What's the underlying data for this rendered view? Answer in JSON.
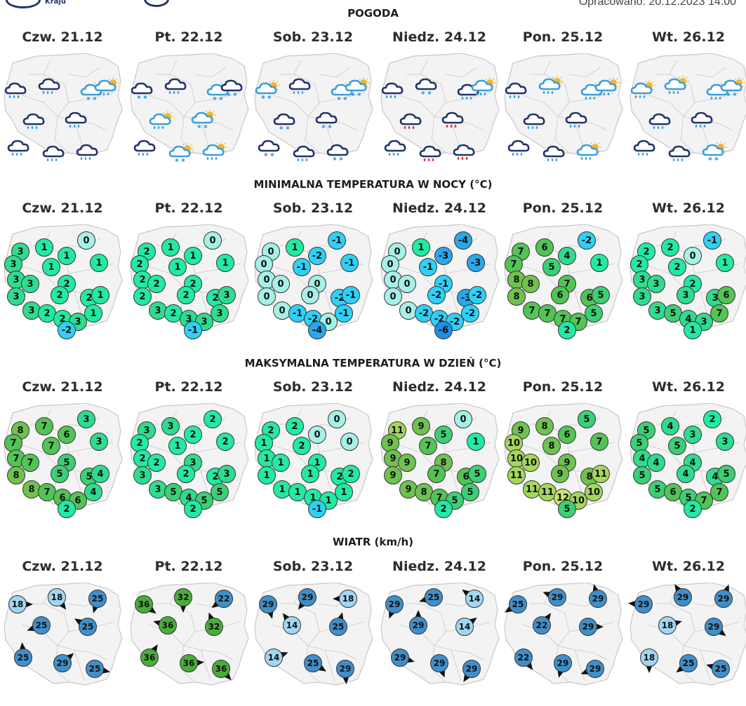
{
  "header": {
    "logo_left_text": "Kraju",
    "updated": "Opracowano: 20.12.2023 14:00"
  },
  "colors": {
    "cloud_dark": "#24326b",
    "cloud_light": "#3a9fdc",
    "sun": "#f5b72a",
    "rain_blue": "#3a9fdc",
    "rain_red": "#e0282e",
    "map_fill": "#f3f3f3",
    "map_stroke": "#c8c8c8"
  },
  "sections": {
    "weather": "POGODA",
    "tmin": "MINIMALNA TEMPERATURA W NOCY (°C)",
    "tmax": "MAKSYMALNA TEMPERATURA W DZIEŃ (°C)",
    "wind": "WIATR (km/h)"
  },
  "days": [
    "Czw. 21.12",
    "Pt. 22.12",
    "Sob. 23.12",
    "Niedz. 24.12",
    "Pon. 25.12",
    "Wt. 26.12"
  ],
  "weather_icons": [
    [
      "cloud-rain",
      "cloud-rain",
      "sun-cloud-snow",
      "cloud-rain",
      "cloud-rain",
      "cloud-rain",
      "cloud-rain",
      "cloud-rain",
      "sun-cloud-rain"
    ],
    [
      "cloud-snow",
      "cloud-rain",
      "sun-cloud-snow",
      "sun-cloud-rain",
      "sun-cloud-snow",
      "cloud-rain",
      "sun-cloud-snow",
      "sun-cloud-rain",
      "cloud-snow"
    ],
    [
      "sun-cloud-snow",
      "cloud-rain",
      "sun-cloud-snow",
      "cloud-snow",
      "cloud-snow",
      "cloud-snow",
      "cloud-rain",
      "cloud-snow",
      "sun-cloud-snow"
    ],
    [
      "cloud-rain",
      "cloud-snow",
      "cloud-rain",
      "cloud-rain-red",
      "cloud-rain-red",
      "cloud-rain",
      "cloud-rain-red",
      "cloud-rain-red",
      "sun-cloud-rain"
    ],
    [
      "cloud-rain",
      "sun-cloud-rain",
      "sun-cloud-rain",
      "cloud-rain",
      "cloud-rain",
      "cloud-rain",
      "cloud-rain",
      "sun-cloud-rain",
      "sun-cloud-rain"
    ],
    [
      "sun-cloud-rain",
      "sun-cloud-rain",
      "sun-cloud-rain",
      "cloud-rain",
      "cloud-rain",
      "cloud-rain",
      "cloud-rain",
      "sun-cloud-snow",
      "sun-cloud-snow"
    ]
  ],
  "tmin": [
    [
      "3",
      "1",
      "0",
      "3",
      "1",
      "1",
      "1",
      "3",
      "3",
      "2",
      "3",
      "2",
      "2",
      "3",
      "2",
      "2",
      "3",
      "1",
      "1",
      "-2"
    ],
    [
      "2",
      "1",
      "0",
      "2",
      "1",
      "1",
      "1",
      "2",
      "2",
      "2",
      "2",
      "2",
      "2",
      "3",
      "2",
      "3",
      "3",
      "3",
      "3",
      "-1"
    ],
    [
      "0",
      "1",
      "-1",
      "0",
      "-1",
      "-2",
      "-1",
      "0",
      "0",
      "0",
      "0",
      "0",
      "-2",
      "0",
      "-1",
      "-2",
      "0",
      "-1",
      "-1",
      "-4"
    ],
    [
      "0",
      "1",
      "-4",
      "0",
      "-1",
      "-3",
      "-3",
      "0",
      "0",
      "-1",
      "0",
      "-2",
      "-3",
      "0",
      "-2",
      "-2",
      "-2",
      "-2",
      "-2",
      "-6"
    ],
    [
      "7",
      "6",
      "-2",
      "7",
      "5",
      "4",
      "1",
      "8",
      "8",
      "7",
      "8",
      "6",
      "6",
      "7",
      "7",
      "7",
      "7",
      "5",
      "5",
      "2"
    ],
    [
      "2",
      "2",
      "-1",
      "2",
      "2",
      "0",
      "1",
      "3",
      "3",
      "2",
      "3",
      "3",
      "3",
      "3",
      "5",
      "4",
      "3",
      "7",
      "6",
      "1"
    ]
  ],
  "tmax": [
    [
      "8",
      "7",
      "3",
      "7",
      "7",
      "6",
      "3",
      "7",
      "7",
      "5",
      "8",
      "5",
      "5",
      "8",
      "7",
      "6",
      "6",
      "4",
      "4",
      "2"
    ],
    [
      "3",
      "3",
      "2",
      "2",
      "1",
      "2",
      "2",
      "2",
      "2",
      "3",
      "3",
      "2",
      "2",
      "3",
      "5",
      "4",
      "5",
      "5",
      "3",
      "2"
    ],
    [
      "2",
      "2",
      "0",
      "1",
      "2",
      "0",
      "0",
      "1",
      "1",
      "1",
      "1",
      "1",
      "2",
      "1",
      "1",
      "1",
      "1",
      "1",
      "2",
      "-1"
    ],
    [
      "11",
      "9",
      "0",
      "9",
      "7",
      "5",
      "1",
      "9",
      "9",
      "8",
      "9",
      "7",
      "6",
      "9",
      "8",
      "7",
      "5",
      "5",
      "5",
      "2"
    ],
    [
      "9",
      "8",
      "5",
      "10",
      "8",
      "6",
      "7",
      "10",
      "10",
      "9",
      "11",
      "9",
      "8",
      "11",
      "11",
      "12",
      "10",
      "10",
      "11",
      "5"
    ],
    [
      "5",
      "4",
      "2",
      "5",
      "5",
      "3",
      "3",
      "4",
      "4",
      "4",
      "5",
      "4",
      "4",
      "5",
      "6",
      "5",
      "7",
      "7",
      "5",
      "2"
    ]
  ],
  "wind": [
    [
      "18",
      "18",
      "25",
      "25",
      "25",
      "25",
      "29",
      "25"
    ],
    [
      "36",
      "32",
      "22",
      "36",
      "32",
      "36",
      "36",
      "36"
    ],
    [
      "29",
      "29",
      "18",
      "14",
      "25",
      "14",
      "25",
      "29"
    ],
    [
      "29",
      "25",
      "14",
      "29",
      "14",
      "29",
      "29",
      "29"
    ],
    [
      "25",
      "29",
      "29",
      "22",
      "29",
      "22",
      "29",
      "29"
    ],
    [
      "29",
      "29",
      "29",
      "18",
      "29",
      "18",
      "25",
      "25"
    ]
  ]
}
